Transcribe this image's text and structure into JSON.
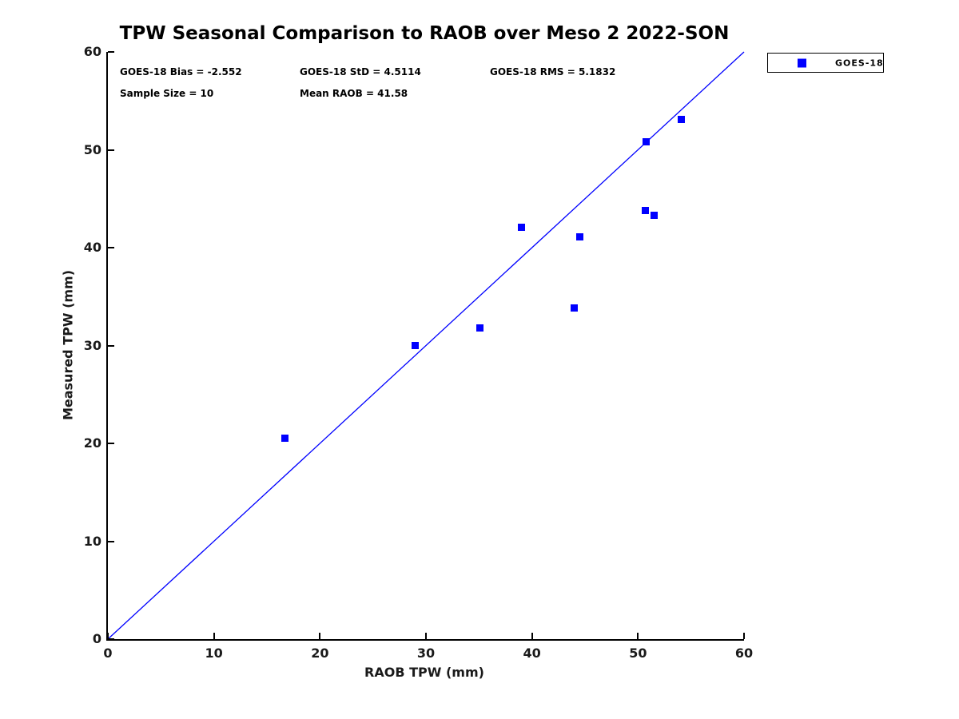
{
  "chart_data": {
    "type": "scatter",
    "title": "TPW Seasonal Comparison to RAOB over Meso 2 2022-SON",
    "xlabel": "RAOB TPW (mm)",
    "ylabel": "Measured TPW (mm)",
    "xlim": [
      0,
      60
    ],
    "ylim": [
      0,
      60
    ],
    "xticks": [
      0,
      10,
      20,
      30,
      40,
      50,
      60
    ],
    "yticks": [
      0,
      10,
      20,
      30,
      40,
      50,
      60
    ],
    "grid": false,
    "marker_color": "#0000ff",
    "line_color": "#0000ff",
    "series": [
      {
        "name": "GOES-18",
        "marker": "square",
        "color": "#0000ff",
        "points": [
          [
            16.7,
            20.5
          ],
          [
            29.0,
            30.0
          ],
          [
            35.1,
            31.8
          ],
          [
            39.0,
            42.1
          ],
          [
            44.0,
            33.8
          ],
          [
            44.5,
            41.1
          ],
          [
            50.7,
            43.8
          ],
          [
            51.5,
            43.3
          ],
          [
            50.8,
            50.8
          ],
          [
            54.1,
            53.1
          ]
        ]
      }
    ],
    "reference_line": {
      "from": [
        0,
        0
      ],
      "to": [
        60,
        60
      ],
      "color": "#0000ff"
    },
    "legend": {
      "position": "top-right-outside",
      "label": "GOES-18"
    },
    "stats": {
      "row1": [
        "GOES-18 Bias = -2.552",
        "GOES-18 StD = 4.5114",
        "GOES-18 RMS = 5.1832"
      ],
      "row2": [
        "Sample Size = 10",
        "Mean RAOB = 41.58"
      ]
    }
  }
}
